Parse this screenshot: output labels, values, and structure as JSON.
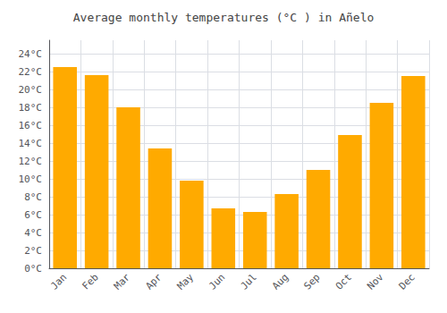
{
  "chart_data": {
    "type": "bar",
    "title": "Average monthly temperatures (°C ) in Añelo",
    "categories": [
      "Jan",
      "Feb",
      "Mar",
      "Apr",
      "May",
      "Jun",
      "Jul",
      "Aug",
      "Sep",
      "Oct",
      "Nov",
      "Dec"
    ],
    "values": [
      22.5,
      21.6,
      18.0,
      13.4,
      9.8,
      6.7,
      6.3,
      8.3,
      11.0,
      14.9,
      18.5,
      21.5
    ],
    "color": "#FFAA00",
    "ylim": [
      0,
      25.5
    ],
    "yticks": [
      {
        "value": 0,
        "label": "0°C"
      },
      {
        "value": 2,
        "label": "2°C"
      },
      {
        "value": 4,
        "label": "4°C"
      },
      {
        "value": 6,
        "label": "6°C"
      },
      {
        "value": 8,
        "label": "8°C"
      },
      {
        "value": 10,
        "label": "10°C"
      },
      {
        "value": 12,
        "label": "12°C"
      },
      {
        "value": 14,
        "label": "14°C"
      },
      {
        "value": 16,
        "label": "16°C"
      },
      {
        "value": 18,
        "label": "18°C"
      },
      {
        "value": 20,
        "label": "20°C"
      },
      {
        "value": 22,
        "label": "22°C"
      },
      {
        "value": 24,
        "label": "24°C"
      }
    ],
    "grid": true
  }
}
